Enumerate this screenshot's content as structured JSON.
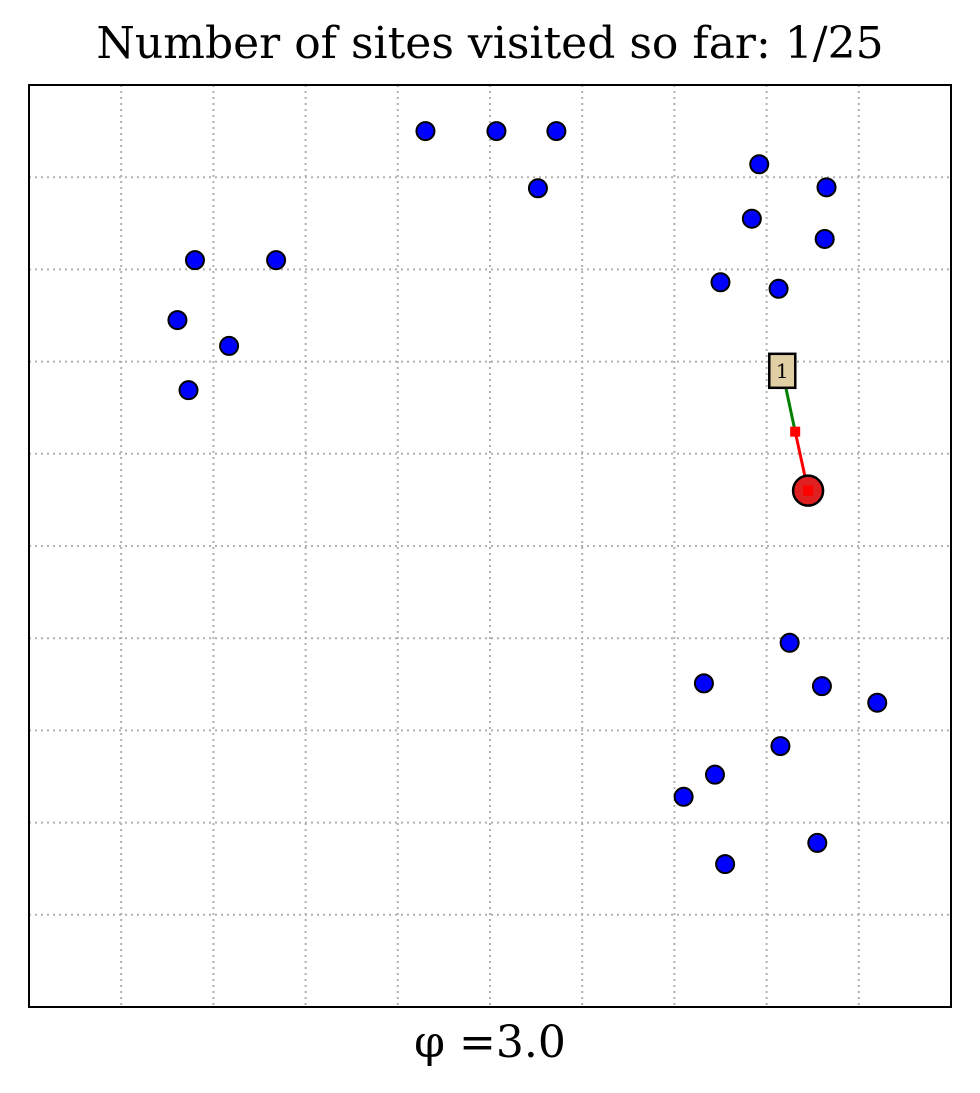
{
  "title": "Number of sites visited so far: 1/25",
  "xlabel": "φ =3.0",
  "chart_data": {
    "type": "scatter",
    "title": "Number of sites visited so far: 1/25",
    "xlabel": "φ =3.0",
    "ylabel": "",
    "xlim": [
      0,
      10
    ],
    "ylim": [
      0,
      10
    ],
    "grid": true,
    "grid_style": "dotted",
    "ticks_labeled": false,
    "colors": {
      "site": "#0000ff",
      "site_edge": "#000000",
      "current": "#e02020",
      "path_recent": "#ff0000",
      "path_old": "#008000",
      "marker_box": "#e0cfa5"
    },
    "sites": [
      {
        "x": 4.3,
        "y": 9.5
      },
      {
        "x": 5.07,
        "y": 9.5
      },
      {
        "x": 5.72,
        "y": 9.5
      },
      {
        "x": 5.52,
        "y": 8.88
      },
      {
        "x": 7.92,
        "y": 9.14
      },
      {
        "x": 8.65,
        "y": 8.89
      },
      {
        "x": 7.84,
        "y": 8.55
      },
      {
        "x": 8.63,
        "y": 8.33
      },
      {
        "x": 7.5,
        "y": 7.86
      },
      {
        "x": 8.13,
        "y": 7.79
      },
      {
        "x": 1.8,
        "y": 8.1
      },
      {
        "x": 2.68,
        "y": 8.1
      },
      {
        "x": 1.61,
        "y": 7.45
      },
      {
        "x": 2.17,
        "y": 7.17
      },
      {
        "x": 1.73,
        "y": 6.69
      },
      {
        "x": 8.25,
        "y": 3.95
      },
      {
        "x": 7.32,
        "y": 3.51
      },
      {
        "x": 8.6,
        "y": 3.48
      },
      {
        "x": 9.2,
        "y": 3.3
      },
      {
        "x": 8.15,
        "y": 2.83
      },
      {
        "x": 7.44,
        "y": 2.52
      },
      {
        "x": 7.1,
        "y": 2.28
      },
      {
        "x": 8.55,
        "y": 1.78
      },
      {
        "x": 7.55,
        "y": 1.55
      }
    ],
    "current_site": {
      "x": 8.45,
      "y": 5.6
    },
    "path": [
      {
        "x": 8.17,
        "y": 6.9
      },
      {
        "x": 8.31,
        "y": 6.24
      },
      {
        "x": 8.45,
        "y": 5.6
      }
    ],
    "visited_labels": [
      {
        "label": "1",
        "x": 8.17,
        "y": 6.9
      }
    ]
  }
}
